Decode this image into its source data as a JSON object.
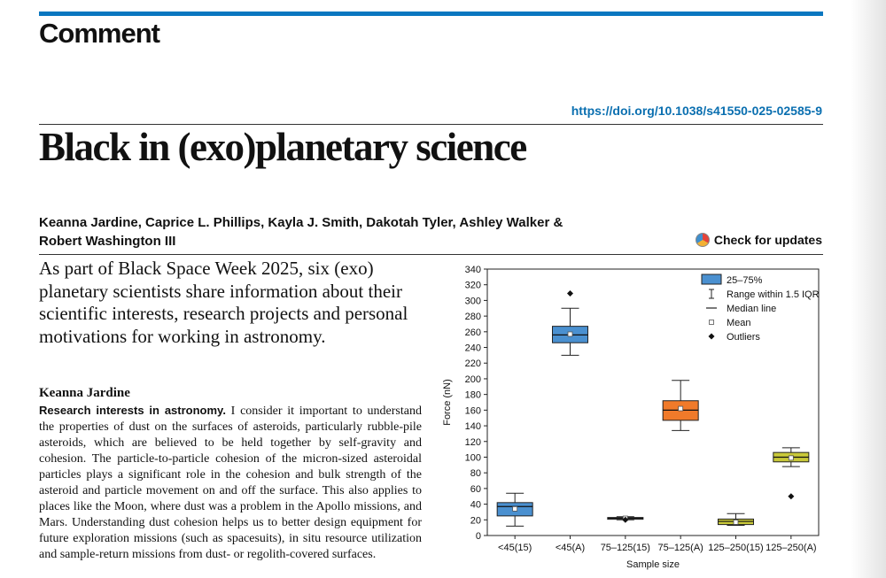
{
  "header": {
    "section": "Comment",
    "doi": "https://doi.org/10.1038/s41550-025-02585-9",
    "check_updates": "Check for updates"
  },
  "article": {
    "title": "Black in (exo)planetary science",
    "authors_line1": "Keanna Jardine, Caprice L. Phillips, Kayla J. Smith, Dakotah Tyler, Ashley Walker &",
    "authors_line2": "Robert Washington III",
    "standfirst": "As part of Black Space Week 2025, six (exo) planetary scientists share information about their scientific interests, research projects and personal motivations for working in astronomy.",
    "subhead": "Keanna Jardine",
    "body_lead": "Research interests in astronomy.",
    "body_text": " I consider it important to understand the properties of dust on the surfaces of asteroids, particularly rubble-pile asteroids, which are believed to be held together by self-gravity and cohesion. The particle-to-particle cohesion of the micron-sized asteroidal particles plays a significant role in the cohesion and bulk strength of the asteroid and particle movement on and off the surface. This also applies to places like the Moon, where dust was a problem in the Apollo missions, and Mars. Understanding dust cohesion helps us to better design equipment for future exploration missions (such as spacesuits), in situ resource utilization and sample-return missions from dust- or regolith-covered surfaces."
  },
  "chart_data": {
    "type": "box",
    "xlabel": "Sample size",
    "ylabel": "Force (nN)",
    "ylim": [
      0,
      340
    ],
    "yticks": [
      0,
      20,
      40,
      60,
      80,
      100,
      120,
      140,
      160,
      180,
      200,
      220,
      240,
      260,
      280,
      300,
      320,
      340
    ],
    "grid": false,
    "legend_position": "top-right",
    "legend": [
      "25–75%",
      "Range within 1.5 IQR",
      "Median line",
      "Mean",
      "Outliers"
    ],
    "categories": [
      "<45(15)",
      "<45(A)",
      "75–125(15)",
      "75–125(A)",
      "125–250(15)",
      "125–250(A)"
    ],
    "boxes": [
      {
        "category": "<45(15)",
        "color": "#4a90d0",
        "whisker_low": 12,
        "q1": 25,
        "median": 37,
        "q3": 42,
        "whisker_high": 54,
        "mean": 34,
        "outliers": []
      },
      {
        "category": "<45(A)",
        "color": "#4a90d0",
        "whisker_low": 230,
        "q1": 246,
        "median": 256,
        "q3": 267,
        "whisker_high": 290,
        "mean": 257,
        "outliers": [
          309
        ]
      },
      {
        "category": "75–125(15)",
        "color": "#cfcfcf",
        "whisker_low": 20,
        "q1": 21,
        "median": 22,
        "q3": 23,
        "whisker_high": 24,
        "mean": 22,
        "outliers": [
          20
        ]
      },
      {
        "category": "75–125(A)",
        "color": "#f07a2a",
        "whisker_low": 134,
        "q1": 147,
        "median": 160,
        "q3": 172,
        "whisker_high": 198,
        "mean": 162,
        "outliers": []
      },
      {
        "category": "125–250(15)",
        "color": "#c9c93a",
        "whisker_low": 13,
        "q1": 14,
        "median": 18,
        "q3": 21,
        "whisker_high": 28,
        "mean": 17,
        "outliers": []
      },
      {
        "category": "125–250(A)",
        "color": "#c9c93a",
        "whisker_low": 88,
        "q1": 94,
        "median": 100,
        "q3": 106,
        "whisker_high": 112,
        "mean": 99,
        "outliers": [
          50
        ]
      }
    ]
  }
}
